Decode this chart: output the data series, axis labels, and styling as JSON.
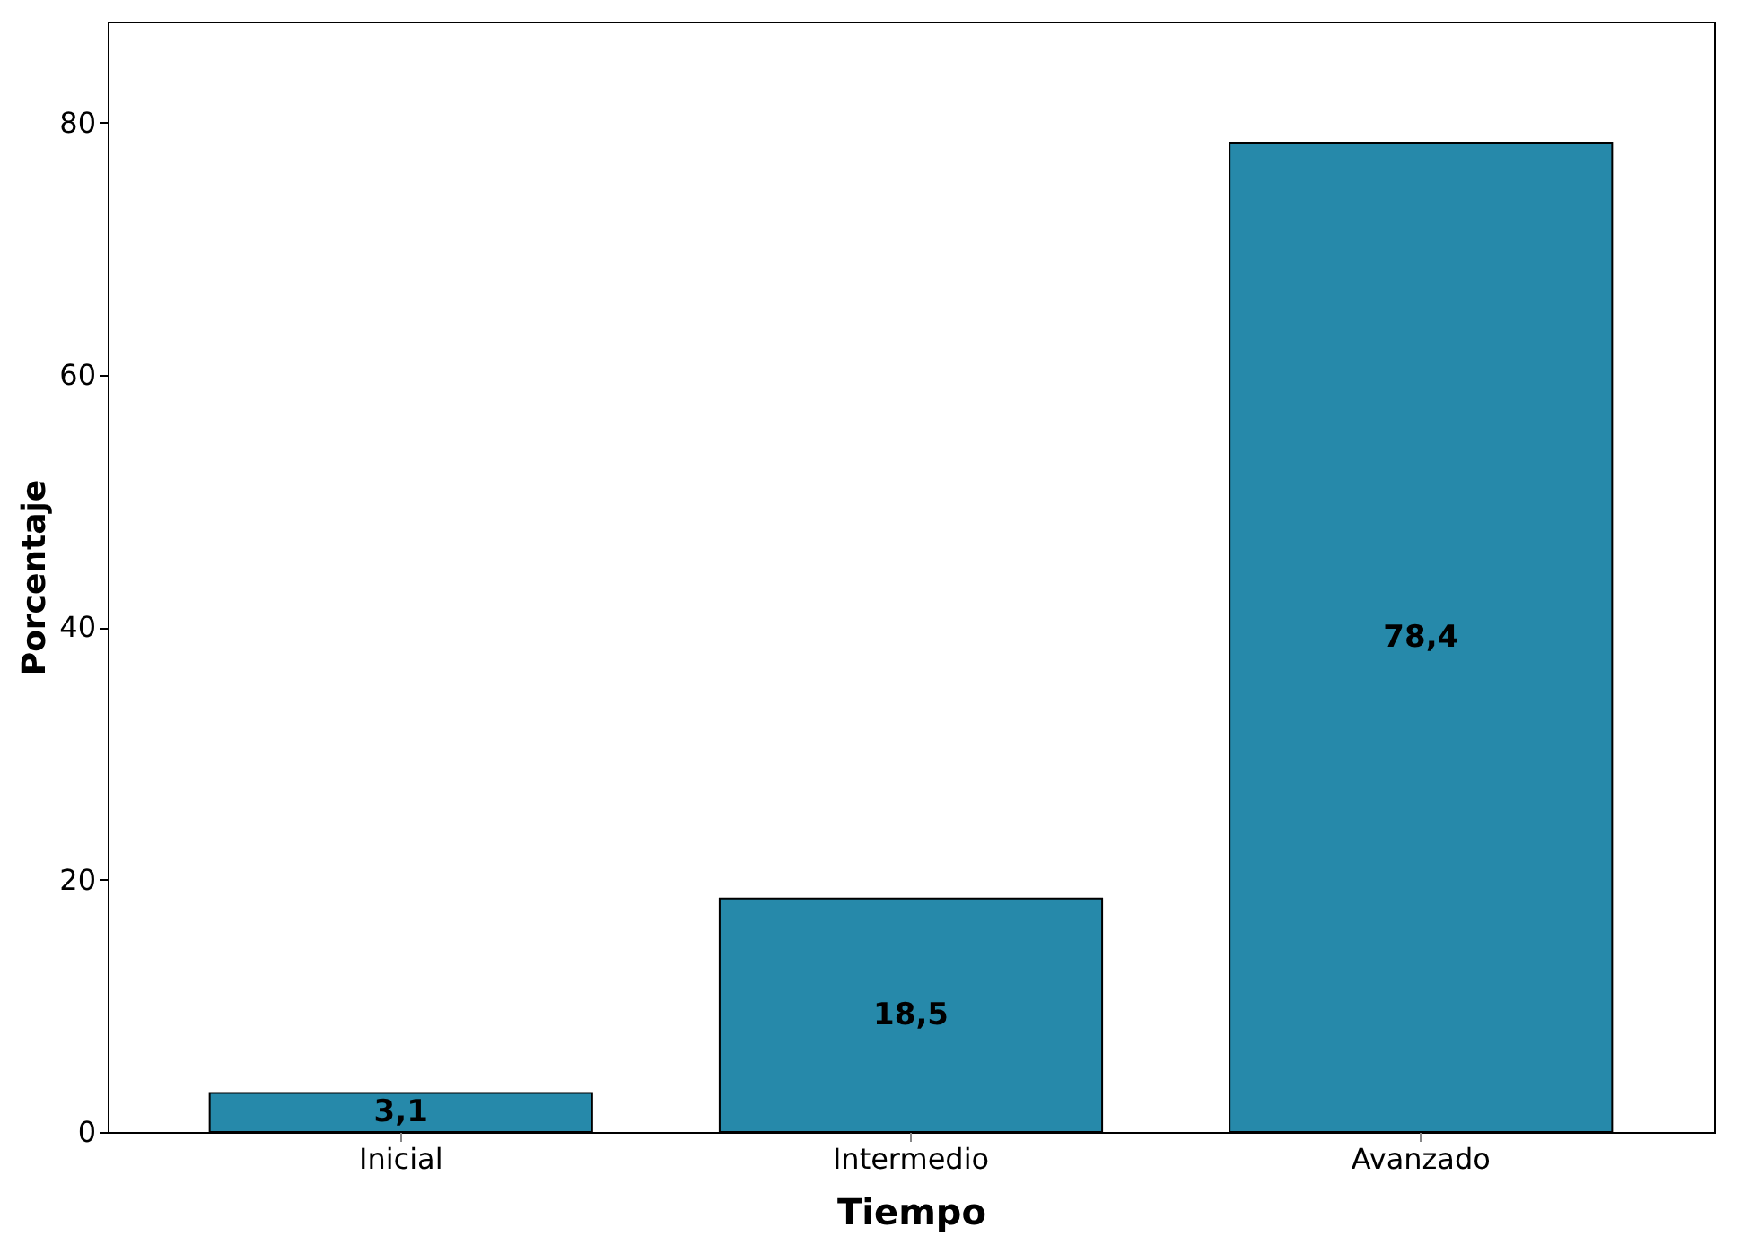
{
  "chart_data": {
    "type": "bar",
    "xlabel": "Tiempo",
    "ylabel": "Porcentaje",
    "categories": [
      "Inicial",
      "Intermedio",
      "Avanzado"
    ],
    "values": [
      3.1,
      18.5,
      78.4
    ],
    "value_labels": [
      "3,1",
      "18,5",
      "78,4"
    ],
    "color": "#2689aa",
    "ylim": [
      0,
      88
    ],
    "yticks": [
      0,
      20,
      40,
      60,
      80
    ],
    "grid": false
  }
}
